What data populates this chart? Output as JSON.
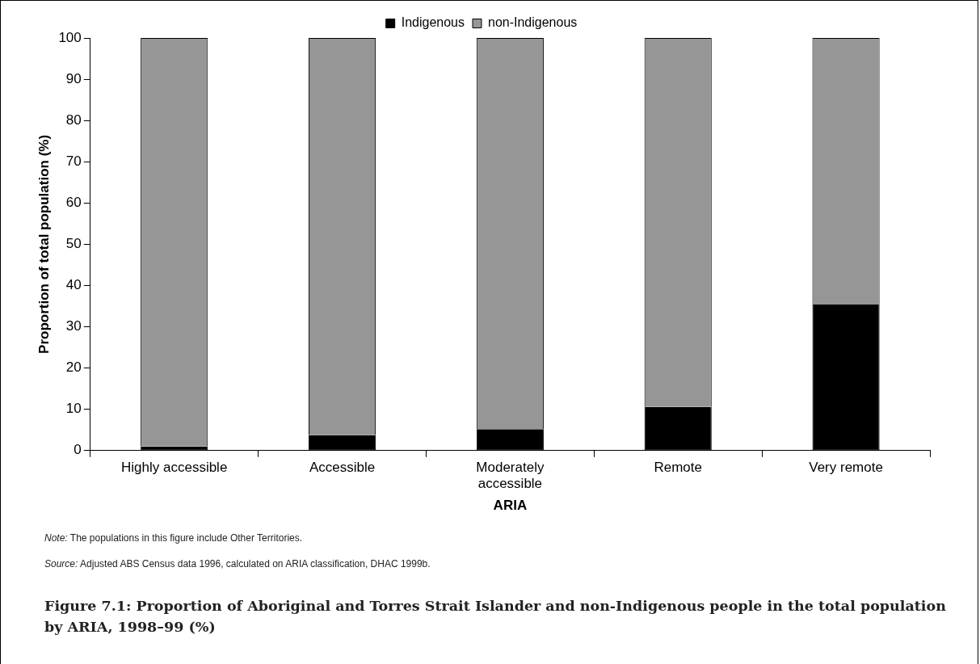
{
  "chart_data": {
    "type": "bar",
    "stacked": true,
    "title": "Figure 7.1: Proportion of Aboriginal and Torres Strait Islander and non-Indigenous people in the total population by ARIA, 1998–99 (%)",
    "xlabel": "ARIA",
    "ylabel": "Proportion of total population (%)",
    "categories": [
      "Highly accessible",
      "Accessible",
      "Moderately accessible",
      "Remote",
      "Very remote"
    ],
    "series": [
      {
        "name": "Indigenous",
        "color": "#000000",
        "values": [
          1.0,
          3.8,
          5.2,
          10.6,
          35.4
        ]
      },
      {
        "name": "non-Indigenous",
        "color": "#969696",
        "values": [
          99.0,
          96.2,
          94.8,
          89.4,
          64.6
        ]
      }
    ],
    "ylim": [
      0,
      100
    ],
    "yticks": [
      0,
      10,
      20,
      30,
      40,
      50,
      60,
      70,
      80,
      90,
      100
    ],
    "grid": false,
    "legend": "top",
    "annotations": [
      "Note: The populations in this figure include Other Territories.",
      "Source: Adjusted ABS Census data 1996, calculated on ARIA classification, DHAC 1999b."
    ]
  }
}
